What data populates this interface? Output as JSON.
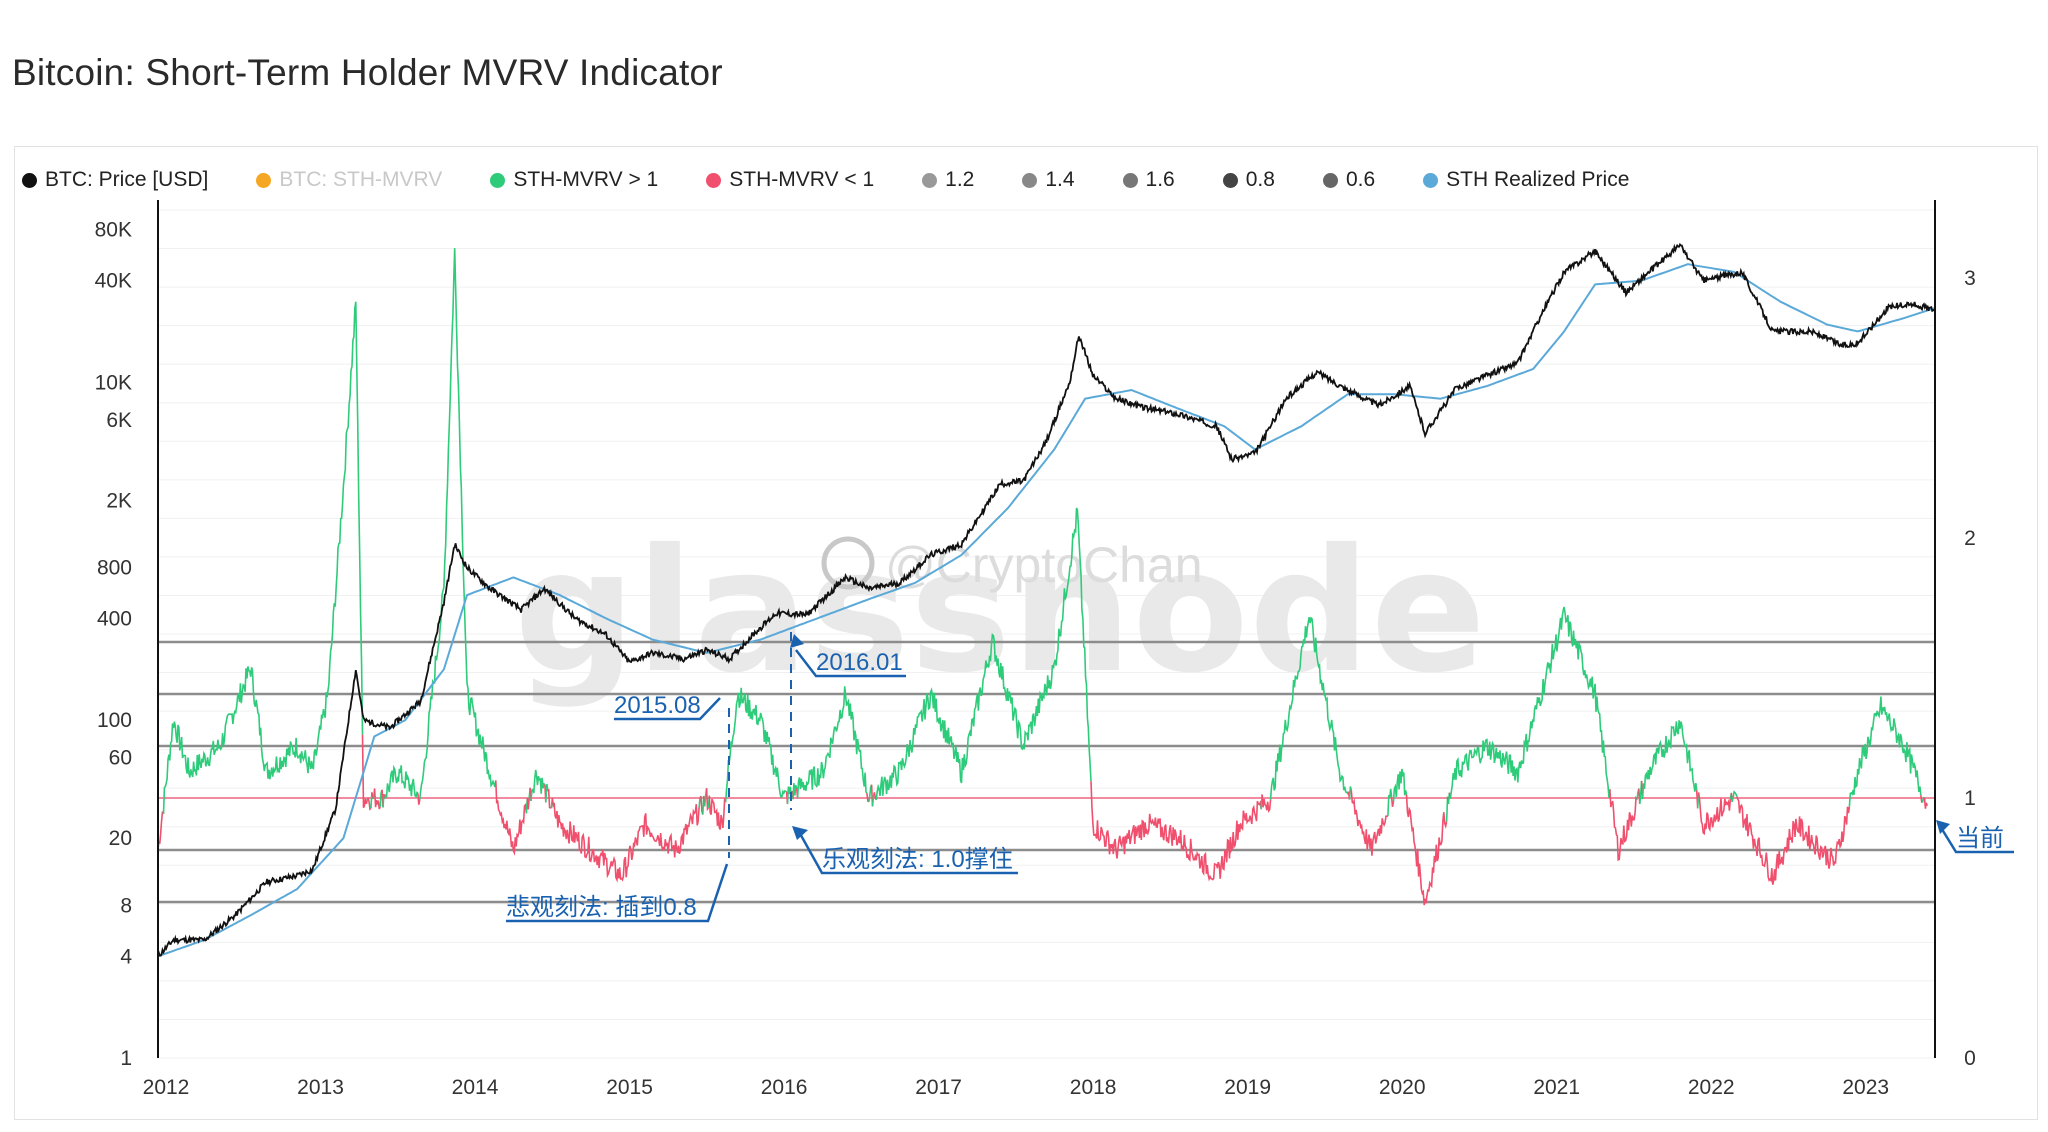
{
  "title": "Bitcoin: Short-Term Holder MVRV Indicator",
  "legend": [
    {
      "label": "BTC: Price [USD]",
      "color": "#111111",
      "muted": false
    },
    {
      "label": "BTC: STH-MVRV",
      "color": "#f5a623",
      "muted": true
    },
    {
      "label": "STH-MVRV > 1",
      "color": "#2ecc7a",
      "muted": false
    },
    {
      "label": "STH-MVRV < 1",
      "color": "#f0506e",
      "muted": false
    },
    {
      "label": "1.2",
      "color": "#999999",
      "muted": false
    },
    {
      "label": "1.4",
      "color": "#888888",
      "muted": false
    },
    {
      "label": "1.6",
      "color": "#777777",
      "muted": false
    },
    {
      "label": "0.8",
      "color": "#444444",
      "muted": false
    },
    {
      "label": "0.6",
      "color": "#666666",
      "muted": false
    },
    {
      "label": "STH Realized Price",
      "color": "#5aa9d8",
      "muted": false
    }
  ],
  "watermark": {
    "brand": "glassnode",
    "handle": "@CryptoChan"
  },
  "annotations": {
    "a2015": "2015.08",
    "a2016": "2016.01",
    "pessimistic": "悲观刻法: 插到0.8",
    "optimistic": "乐观刻法: 1.0撑住",
    "current": "当前"
  },
  "chart_data": {
    "type": "line",
    "x": {
      "range": [
        2012.0,
        2023.5
      ],
      "tick_labels": [
        "2012",
        "2013",
        "2014",
        "2015",
        "2016",
        "2017",
        "2018",
        "2019",
        "2020",
        "2021",
        "2022",
        "2023"
      ]
    },
    "y_left": {
      "scale": "log",
      "range": [
        1,
        120000
      ],
      "tick_labels": [
        "80K",
        "40K",
        "10K",
        "6K",
        "2K",
        "800",
        "400",
        "100",
        "60",
        "20",
        "8",
        "4",
        "1"
      ],
      "tick_values": [
        80000,
        40000,
        10000,
        6000,
        2000,
        800,
        400,
        100,
        60,
        20,
        8,
        4,
        1
      ]
    },
    "y_right": {
      "scale": "linear",
      "range": [
        0,
        3.3
      ],
      "tick_labels": [
        "3",
        "2",
        "1",
        "0"
      ],
      "tick_values": [
        3,
        2,
        1,
        0
      ]
    },
    "reference_levels": [
      1.6,
      1.4,
      1.2,
      1.0,
      0.8,
      0.6
    ],
    "colors": {
      "price": "#111111",
      "realized": "#5aa9d8",
      "above": "#2ecc7a",
      "below": "#f0506e",
      "ref": "#8c8c8c",
      "one_line": "#f28aa0"
    },
    "series": [
      {
        "name": "BTC: Price [USD]",
        "axis": "left",
        "points": [
          [
            2012.0,
            4
          ],
          [
            2012.1,
            5
          ],
          [
            2012.3,
            5
          ],
          [
            2012.5,
            7
          ],
          [
            2012.7,
            11
          ],
          [
            2012.9,
            12
          ],
          [
            2013.0,
            13
          ],
          [
            2013.15,
            30
          ],
          [
            2013.28,
            200
          ],
          [
            2013.33,
            100
          ],
          [
            2013.5,
            90
          ],
          [
            2013.7,
            130
          ],
          [
            2013.85,
            500
          ],
          [
            2013.92,
            1100
          ],
          [
            2014.0,
            800
          ],
          [
            2014.15,
            600
          ],
          [
            2014.35,
            450
          ],
          [
            2014.5,
            600
          ],
          [
            2014.7,
            400
          ],
          [
            2014.9,
            320
          ],
          [
            2015.05,
            220
          ],
          [
            2015.2,
            250
          ],
          [
            2015.4,
            230
          ],
          [
            2015.55,
            260
          ],
          [
            2015.7,
            230
          ],
          [
            2015.85,
            320
          ],
          [
            2016.0,
            430
          ],
          [
            2016.2,
            420
          ],
          [
            2016.45,
            700
          ],
          [
            2016.6,
            600
          ],
          [
            2016.8,
            650
          ],
          [
            2017.0,
            950
          ],
          [
            2017.2,
            1100
          ],
          [
            2017.45,
            2500
          ],
          [
            2017.6,
            2600
          ],
          [
            2017.75,
            4500
          ],
          [
            2017.9,
            10000
          ],
          [
            2017.96,
            19000
          ],
          [
            2018.05,
            11000
          ],
          [
            2018.2,
            8000
          ],
          [
            2018.4,
            7000
          ],
          [
            2018.6,
            6500
          ],
          [
            2018.85,
            5500
          ],
          [
            2018.95,
            3500
          ],
          [
            2019.1,
            3800
          ],
          [
            2019.3,
            8000
          ],
          [
            2019.5,
            11500
          ],
          [
            2019.7,
            9000
          ],
          [
            2019.9,
            7300
          ],
          [
            2020.1,
            9500
          ],
          [
            2020.2,
            5000
          ],
          [
            2020.4,
            9200
          ],
          [
            2020.6,
            11000
          ],
          [
            2020.8,
            13000
          ],
          [
            2020.95,
            25000
          ],
          [
            2021.1,
            45000
          ],
          [
            2021.3,
            60000
          ],
          [
            2021.5,
            34000
          ],
          [
            2021.65,
            45000
          ],
          [
            2021.85,
            65000
          ],
          [
            2022.0,
            40000
          ],
          [
            2022.25,
            45000
          ],
          [
            2022.45,
            20000
          ],
          [
            2022.7,
            20000
          ],
          [
            2022.9,
            16500
          ],
          [
            2023.0,
            17000
          ],
          [
            2023.2,
            28000
          ],
          [
            2023.35,
            29000
          ],
          [
            2023.5,
            27000
          ]
        ]
      },
      {
        "name": "STH Realized Price",
        "axis": "left",
        "points": [
          [
            2012.0,
            4
          ],
          [
            2012.3,
            5
          ],
          [
            2012.6,
            7
          ],
          [
            2012.9,
            10
          ],
          [
            2013.2,
            20
          ],
          [
            2013.4,
            80
          ],
          [
            2013.6,
            100
          ],
          [
            2013.85,
            200
          ],
          [
            2014.0,
            550
          ],
          [
            2014.3,
            700
          ],
          [
            2014.6,
            550
          ],
          [
            2014.9,
            400
          ],
          [
            2015.2,
            300
          ],
          [
            2015.55,
            250
          ],
          [
            2015.9,
            300
          ],
          [
            2016.2,
            380
          ],
          [
            2016.6,
            520
          ],
          [
            2016.9,
            650
          ],
          [
            2017.2,
            950
          ],
          [
            2017.5,
            1800
          ],
          [
            2017.8,
            4000
          ],
          [
            2018.0,
            8000
          ],
          [
            2018.3,
            9000
          ],
          [
            2018.6,
            7000
          ],
          [
            2018.9,
            5500
          ],
          [
            2019.1,
            4000
          ],
          [
            2019.4,
            5500
          ],
          [
            2019.7,
            8500
          ],
          [
            2020.0,
            8500
          ],
          [
            2020.3,
            8000
          ],
          [
            2020.6,
            9500
          ],
          [
            2020.9,
            12000
          ],
          [
            2021.1,
            20000
          ],
          [
            2021.3,
            38000
          ],
          [
            2021.6,
            40000
          ],
          [
            2021.9,
            50000
          ],
          [
            2022.2,
            45000
          ],
          [
            2022.5,
            30000
          ],
          [
            2022.8,
            22000
          ],
          [
            2023.0,
            20000
          ],
          [
            2023.3,
            24000
          ],
          [
            2023.5,
            27500
          ]
        ]
      },
      {
        "name": "STH-MVRV",
        "axis": "right",
        "points": [
          [
            2012.0,
            0.8
          ],
          [
            2012.1,
            1.3
          ],
          [
            2012.2,
            1.1
          ],
          [
            2012.4,
            1.2
          ],
          [
            2012.6,
            1.5
          ],
          [
            2012.7,
            1.1
          ],
          [
            2012.9,
            1.2
          ],
          [
            2013.0,
            1.1
          ],
          [
            2013.1,
            1.4
          ],
          [
            2013.2,
            2.2
          ],
          [
            2013.28,
            2.9
          ],
          [
            2013.33,
            1.0
          ],
          [
            2013.45,
            1.0
          ],
          [
            2013.55,
            1.1
          ],
          [
            2013.7,
            1.0
          ],
          [
            2013.85,
            1.8
          ],
          [
            2013.92,
            3.1
          ],
          [
            2014.0,
            1.4
          ],
          [
            2014.15,
            1.1
          ],
          [
            2014.3,
            0.8
          ],
          [
            2014.45,
            1.1
          ],
          [
            2014.6,
            0.9
          ],
          [
            2014.8,
            0.8
          ],
          [
            2015.0,
            0.7
          ],
          [
            2015.15,
            0.9
          ],
          [
            2015.35,
            0.8
          ],
          [
            2015.55,
            1.0
          ],
          [
            2015.65,
            0.9
          ],
          [
            2015.75,
            1.4
          ],
          [
            2015.9,
            1.3
          ],
          [
            2016.05,
            1.0
          ],
          [
            2016.3,
            1.1
          ],
          [
            2016.45,
            1.4
          ],
          [
            2016.6,
            1.0
          ],
          [
            2016.8,
            1.1
          ],
          [
            2017.0,
            1.4
          ],
          [
            2017.2,
            1.1
          ],
          [
            2017.4,
            1.6
          ],
          [
            2017.6,
            1.2
          ],
          [
            2017.8,
            1.5
          ],
          [
            2017.95,
            2.1
          ],
          [
            2018.05,
            0.9
          ],
          [
            2018.2,
            0.8
          ],
          [
            2018.4,
            0.9
          ],
          [
            2018.6,
            0.85
          ],
          [
            2018.85,
            0.7
          ],
          [
            2019.0,
            0.9
          ],
          [
            2019.2,
            1.0
          ],
          [
            2019.45,
            1.7
          ],
          [
            2019.65,
            1.1
          ],
          [
            2019.85,
            0.8
          ],
          [
            2020.05,
            1.1
          ],
          [
            2020.2,
            0.6
          ],
          [
            2020.4,
            1.1
          ],
          [
            2020.6,
            1.2
          ],
          [
            2020.8,
            1.1
          ],
          [
            2021.0,
            1.5
          ],
          [
            2021.1,
            1.7
          ],
          [
            2021.3,
            1.4
          ],
          [
            2021.45,
            0.8
          ],
          [
            2021.65,
            1.1
          ],
          [
            2021.85,
            1.3
          ],
          [
            2022.0,
            0.9
          ],
          [
            2022.2,
            1.0
          ],
          [
            2022.45,
            0.7
          ],
          [
            2022.6,
            0.9
          ],
          [
            2022.85,
            0.75
          ],
          [
            2023.0,
            1.1
          ],
          [
            2023.15,
            1.35
          ],
          [
            2023.3,
            1.2
          ],
          [
            2023.45,
            0.97
          ]
        ]
      }
    ]
  }
}
